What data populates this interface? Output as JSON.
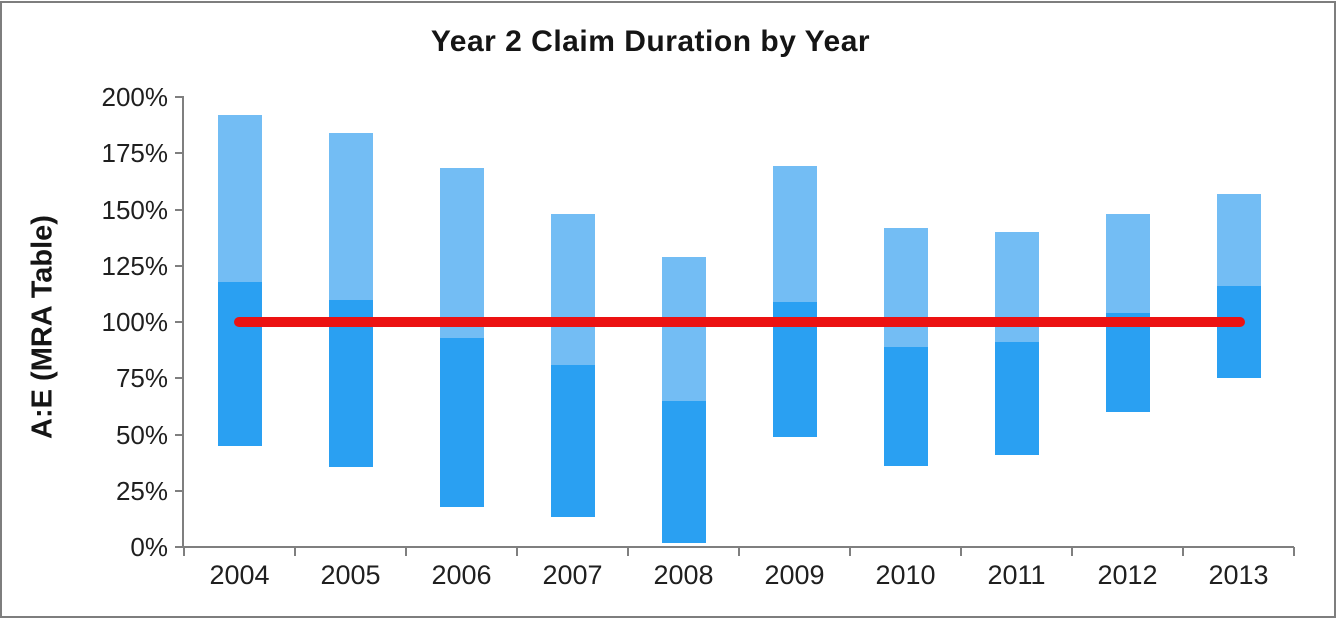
{
  "window": {
    "background_color": "#ffffff",
    "border_color": "#7e7e7e"
  },
  "chart_data": {
    "type": "bar",
    "subtype": "floating-range-columns",
    "title": "Year 2 Claim Duration by Year",
    "ylabel": "A:E (MRA Table)",
    "xlabel": "",
    "categories": [
      "2004",
      "2005",
      "2006",
      "2007",
      "2008",
      "2009",
      "2010",
      "2011",
      "2012",
      "2013"
    ],
    "series": [
      {
        "name": "lower segment (dark blue)",
        "color": "#2aa0f2",
        "from": [
          45,
          35.5,
          18,
          13.5,
          2,
          49,
          36,
          41,
          60,
          75
        ],
        "to": [
          118,
          110,
          93,
          81,
          65,
          109,
          89,
          91,
          104,
          116
        ]
      },
      {
        "name": "upper segment (light blue)",
        "color": "#73bdf4",
        "from": [
          118,
          110,
          93,
          81,
          65,
          109,
          89,
          91,
          104,
          116
        ],
        "to": [
          192,
          184,
          168.5,
          148,
          129,
          169.5,
          142,
          140,
          148,
          157
        ]
      }
    ],
    "reference_line": {
      "value": 100,
      "color": "#ec1212"
    },
    "ylim": [
      0,
      200
    ],
    "y_ticks": [
      {
        "label": "200%",
        "value": 200
      },
      {
        "label": "175%",
        "value": 175
      },
      {
        "label": "150%",
        "value": 150
      },
      {
        "label": "125%",
        "value": 125
      },
      {
        "label": "100%",
        "value": 100
      },
      {
        "label": "75%",
        "value": 75
      },
      {
        "label": "50%",
        "value": 50
      },
      {
        "label": "25%",
        "value": 25
      },
      {
        "label": "0%",
        "value": 0
      }
    ],
    "grid": false,
    "legend": "none",
    "axis_color": "#7f7f7f",
    "text_color": "#1f1f1f"
  }
}
